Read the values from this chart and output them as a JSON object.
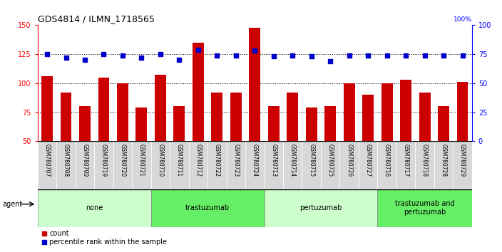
{
  "title": "GDS4814 / ILMN_1718565",
  "samples": [
    "GSM780707",
    "GSM780708",
    "GSM780709",
    "GSM780719",
    "GSM780720",
    "GSM780721",
    "GSM780710",
    "GSM780711",
    "GSM780712",
    "GSM780722",
    "GSM780723",
    "GSM780724",
    "GSM780713",
    "GSM780714",
    "GSM780715",
    "GSM780725",
    "GSM780726",
    "GSM780727",
    "GSM780716",
    "GSM780717",
    "GSM780718",
    "GSM780728",
    "GSM780729"
  ],
  "counts": [
    106,
    92,
    80,
    105,
    100,
    79,
    107,
    80,
    135,
    92,
    92,
    148,
    80,
    92,
    79,
    80,
    100,
    90,
    100,
    103,
    92,
    80,
    101
  ],
  "percentile_ranks": [
    75,
    72,
    70,
    75,
    74,
    72,
    75,
    70,
    79,
    74,
    74,
    78,
    73,
    74,
    73,
    69,
    74,
    74,
    74,
    74,
    74,
    74,
    74
  ],
  "groups": [
    {
      "label": "none",
      "start": 0,
      "end": 6,
      "color": "#ccffcc"
    },
    {
      "label": "trastuzumab",
      "start": 6,
      "end": 12,
      "color": "#66ee66"
    },
    {
      "label": "pertuzumab",
      "start": 12,
      "end": 18,
      "color": "#ccffcc"
    },
    {
      "label": "trastuzumab and\npertuzumab",
      "start": 18,
      "end": 23,
      "color": "#66ee66"
    }
  ],
  "bar_color": "#cc0000",
  "dot_color": "#0000cc",
  "ylim_left": [
    50,
    150
  ],
  "ylim_right": [
    0,
    100
  ],
  "yticks_left": [
    50,
    75,
    100,
    125,
    150
  ],
  "yticks_right": [
    0,
    25,
    50,
    75,
    100
  ],
  "grid_lines": [
    75,
    100,
    125
  ],
  "background_color": "#ffffff",
  "plot_bg": "#ffffff",
  "tick_bg": "#d8d8d8",
  "agent_label": "agent"
}
